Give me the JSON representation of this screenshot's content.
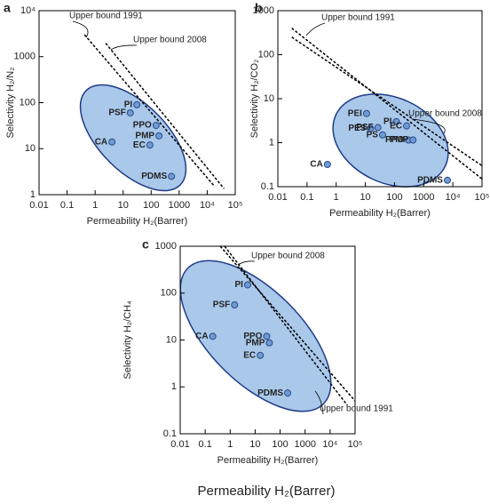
{
  "chart_data": [
    {
      "type": "scatter",
      "panel": "a",
      "xlabel": "Permeability H₂(Barrer)",
      "ylabel": "Selectivity H₂/N₂",
      "log_x": true,
      "log_y": true,
      "xlim": [
        0.01,
        100000
      ],
      "ylim": [
        1,
        10000
      ],
      "xticks": [
        0.01,
        0.1,
        1,
        10,
        100,
        1000,
        {
          "value": 10000,
          "label": "10⁴"
        },
        {
          "value": 100000,
          "label": "10⁵"
        }
      ],
      "yticks": [
        1,
        10,
        100,
        1000,
        {
          "value": 10000,
          "label": "10⁴"
        }
      ],
      "color": "#6f9bd3",
      "labels": [
        "PI",
        "PSF",
        "PPO",
        "PMP",
        "EC",
        "CA",
        "PDMS"
      ],
      "x": [
        31,
        18,
        150,
        190,
        90,
        4,
        530
      ],
      "y": [
        90,
        60,
        32,
        19,
        12,
        14,
        2.5
      ],
      "lines": [
        {
          "name": "Upper bound 1991",
          "x": [
            0.42,
            18600
          ],
          "y": [
            3000,
            1.5
          ]
        },
        {
          "name": "Upper bound 2008",
          "x": [
            2.4,
            40000
          ],
          "y": [
            1950,
            1.35
          ]
        }
      ]
    },
    {
      "type": "scatter",
      "panel": "b",
      "xlabel": "Permeability H₂(Barrer)",
      "ylabel": "Selectivity H₂/CO₂",
      "log_x": true,
      "log_y": true,
      "xlim": [
        0.01,
        100000
      ],
      "ylim": [
        0.1,
        1000
      ],
      "xticks": [
        0.01,
        0.1,
        1,
        10,
        100,
        1000,
        {
          "value": 10000,
          "label": "10⁴"
        },
        {
          "value": 100000,
          "label": "10⁵"
        }
      ],
      "yticks": [
        0.1,
        1,
        10,
        100,
        1000
      ],
      "color": "#6f9bd3",
      "labels": [
        "PEI",
        "PES",
        "PSF",
        "PI",
        "PS",
        "EC",
        "PPO",
        "PMP",
        "CA",
        "PDMS"
      ],
      "x": [
        11,
        15,
        27,
        115,
        39,
        260,
        300,
        430,
        0.5,
        6500
      ],
      "y": [
        4.6,
        2.1,
        2.2,
        3.0,
        1.5,
        2.4,
        1.15,
        1.15,
        0.32,
        0.14
      ],
      "lines": [
        {
          "name": "Upper bound 1991",
          "x": [
            0.03,
            100000
          ],
          "y": [
            400,
            0.15
          ]
        },
        {
          "name": "Upper bound 2008",
          "x": [
            0.03,
            100000
          ],
          "y": [
            250,
            0.3
          ]
        }
      ]
    },
    {
      "type": "scatter",
      "panel": "c",
      "xlabel": "Permeability H₂(Barrer)",
      "ylabel": "Selectivity H₂/CH₄",
      "log_x": true,
      "log_y": true,
      "xlim": [
        0.01,
        100000
      ],
      "ylim": [
        0.1,
        1000
      ],
      "xticks": [
        0.01,
        0.1,
        1,
        10,
        100,
        1000,
        {
          "value": 10000,
          "label": "10⁴"
        },
        {
          "value": 100000,
          "label": "10⁵"
        }
      ],
      "yticks": [
        0.1,
        1,
        10,
        100,
        1000
      ],
      "color": "#6f9bd3",
      "labels": [
        "PI",
        "PSF",
        "CA",
        "PPO",
        "PMP",
        "EC",
        "PDMS"
      ],
      "x": [
        5,
        1.5,
        0.2,
        29,
        37,
        16,
        200
      ],
      "y": [
        150,
        56,
        12,
        12,
        8.7,
        4.7,
        0.74
      ],
      "lines": [
        {
          "name": "Upper bound 2008",
          "x": [
            0.4,
            100000
          ],
          "y": [
            1000,
            0.5
          ]
        },
        {
          "name": "Upper bound 1991",
          "x": [
            0.6,
            50000
          ],
          "y": [
            1000,
            0.4
          ]
        }
      ]
    }
  ],
  "caption": "Permeability H₂(Barrer)"
}
